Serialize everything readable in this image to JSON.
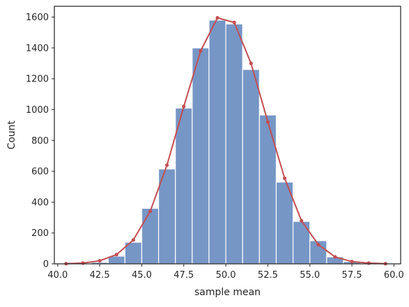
{
  "chart_data": {
    "type": "bar",
    "title": "",
    "xlabel": "sample mean",
    "ylabel": "Count",
    "xlim": [
      39.8,
      60.4
    ],
    "ylim": [
      0,
      1670
    ],
    "grid": false,
    "legend": "none",
    "xticks": [
      40.0,
      42.5,
      45.0,
      47.5,
      50.0,
      52.5,
      55.0,
      57.5,
      60.0
    ],
    "xtick_labels": [
      "40.0",
      "42.5",
      "45.0",
      "47.5",
      "50.0",
      "52.5",
      "55.0",
      "57.5",
      "60.0"
    ],
    "yticks": [
      0,
      200,
      400,
      600,
      800,
      1000,
      1200,
      1400,
      1600
    ],
    "ytick_labels": [
      "0",
      "200",
      "400",
      "600",
      "800",
      "1000",
      "1200",
      "1400",
      "1600"
    ],
    "histogram": {
      "color": "#7696c6",
      "bins": [
        {
          "left": 41.0,
          "right": 42.0,
          "count": 2
        },
        {
          "left": 42.0,
          "right": 43.0,
          "count": 10
        },
        {
          "left": 43.0,
          "right": 44.0,
          "count": 50
        },
        {
          "left": 44.0,
          "right": 45.0,
          "count": 140
        },
        {
          "left": 45.0,
          "right": 46.0,
          "count": 360
        },
        {
          "left": 46.0,
          "right": 47.0,
          "count": 615
        },
        {
          "left": 47.0,
          "right": 48.0,
          "count": 1010
        },
        {
          "left": 48.0,
          "right": 49.0,
          "count": 1400
        },
        {
          "left": 49.0,
          "right": 50.0,
          "count": 1580
        },
        {
          "left": 50.0,
          "right": 51.0,
          "count": 1555
        },
        {
          "left": 51.0,
          "right": 52.0,
          "count": 1260
        },
        {
          "left": 52.0,
          "right": 53.0,
          "count": 965
        },
        {
          "left": 53.0,
          "right": 54.0,
          "count": 530
        },
        {
          "left": 54.0,
          "right": 55.0,
          "count": 275
        },
        {
          "left": 55.0,
          "right": 56.0,
          "count": 150
        },
        {
          "left": 56.0,
          "right": 57.0,
          "count": 45
        },
        {
          "left": 57.0,
          "right": 58.0,
          "count": 15
        },
        {
          "left": 58.0,
          "right": 59.0,
          "count": 5
        }
      ]
    },
    "line": {
      "color": "#c44e52",
      "x": [
        40.5,
        41.5,
        42.5,
        43.5,
        44.5,
        45.5,
        46.5,
        47.5,
        48.5,
        49.5,
        50.5,
        51.5,
        52.5,
        53.5,
        54.5,
        55.5,
        56.5,
        57.5,
        58.5,
        59.5
      ],
      "y": [
        1,
        5,
        20,
        60,
        155,
        340,
        640,
        1020,
        1380,
        1595,
        1565,
        1300,
        920,
        555,
        280,
        125,
        45,
        15,
        5,
        1
      ]
    }
  }
}
